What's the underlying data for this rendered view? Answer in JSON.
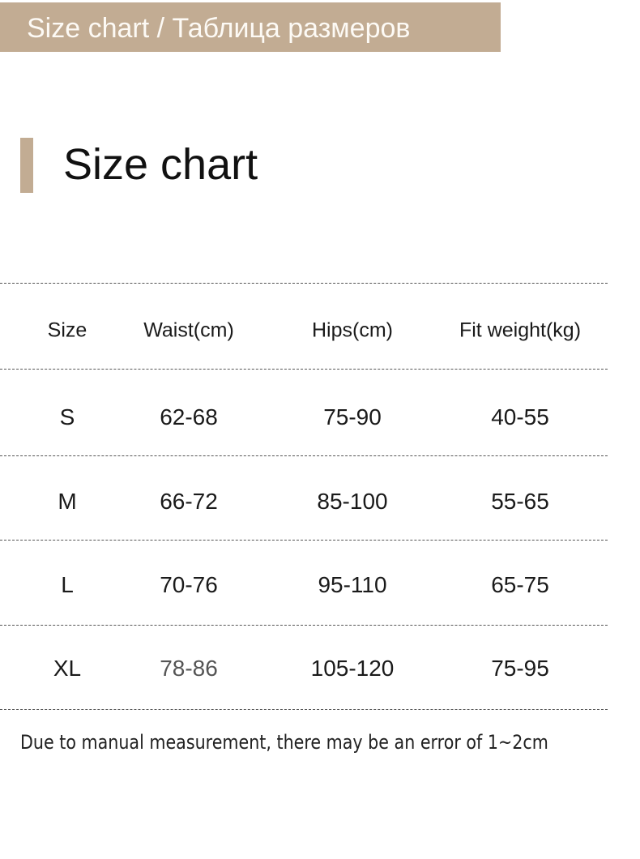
{
  "banner": {
    "title": "Size chart / Таблица размеров"
  },
  "section": {
    "title": "Size chart"
  },
  "colors": {
    "accent": "#c2ac93"
  },
  "table": {
    "headers": [
      "Size",
      "Waist(cm)",
      "Hips(cm)",
      "Fit weight(kg)"
    ],
    "rows": [
      [
        "S",
        "62-68",
        "75-90",
        "40-55"
      ],
      [
        "M",
        "66-72",
        "85-100",
        "55-65"
      ],
      [
        "L",
        "70-76",
        "95-110",
        "65-75"
      ],
      [
        "XL",
        "78-86",
        "105-120",
        "75-95"
      ]
    ]
  },
  "footer": {
    "note": "Due to manual measurement, there may be an error of 1~2cm"
  }
}
